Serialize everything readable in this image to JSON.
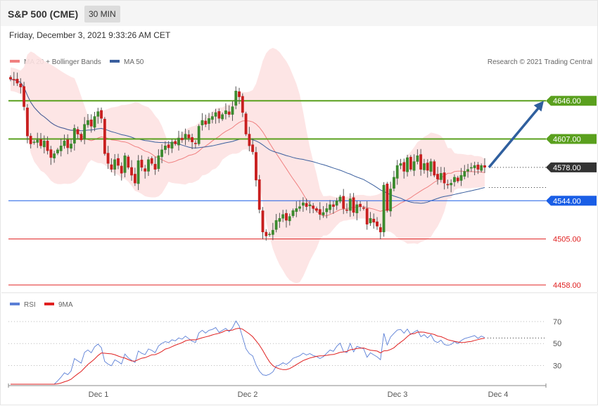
{
  "header": {
    "title": "S&P 500 (CME)",
    "timeframe": "30 MIN",
    "timestamp": "Friday, December 3, 2021 9:33:26 AM CET"
  },
  "legend": {
    "main": [
      {
        "label": "MA 20 + Bollinger Bands",
        "color": "#f08080"
      },
      {
        "label": "MA 50",
        "color": "#3a5f9e"
      }
    ],
    "rsi": [
      {
        "label": "RSI",
        "color": "#5b7fd6"
      },
      {
        "label": "9MA",
        "color": "#e02020"
      }
    ]
  },
  "copyright": "Research © 2021 Trading Central",
  "chart_data": [
    {
      "type": "candlestick",
      "title": "S&P 500 (CME)",
      "x_ticks": [
        "Dec 1",
        "Dec 2",
        "Dec 3",
        "Dec 4"
      ],
      "ylim": [
        4453,
        4672
      ],
      "levels": [
        {
          "value": 4646.0,
          "label": "4646.00",
          "style": "resistance",
          "color": "#5aa01e"
        },
        {
          "value": 4607.0,
          "label": "4607.00",
          "style": "resistance",
          "color": "#5aa01e"
        },
        {
          "value": 4578.0,
          "label": "4578.00",
          "style": "last-price",
          "color": "#333333"
        },
        {
          "value": 4544.0,
          "label": "4544.00",
          "style": "pivot",
          "color": "#1a5ee6"
        },
        {
          "value": 4505.0,
          "label": "4505.00",
          "style": "support",
          "color": "#e02020"
        },
        {
          "value": 4458.0,
          "label": "4458.00",
          "style": "support",
          "color": "#e02020"
        }
      ],
      "forecast_arrow": {
        "from": 4578,
        "to": 4646,
        "color": "#2f5f9e"
      },
      "closes": [
        4668,
        4667,
        4664,
        4660,
        4640,
        4610,
        4602,
        4604,
        4606,
        4600,
        4605,
        4595,
        4588,
        4592,
        4596,
        4600,
        4605,
        4598,
        4602,
        4618,
        4612,
        4606,
        4622,
        4626,
        4620,
        4630,
        4635,
        4628,
        4592,
        4582,
        4576,
        4586,
        4580,
        4572,
        4590,
        4578,
        4570,
        4562,
        4585,
        4578,
        4574,
        4586,
        4582,
        4576,
        4590,
        4596,
        4600,
        4598,
        4604,
        4602,
        4608,
        4606,
        4612,
        4608,
        4604,
        4602,
        4620,
        4626,
        4622,
        4628,
        4630,
        4634,
        4628,
        4632,
        4636,
        4632,
        4640,
        4656,
        4650,
        4634,
        4612,
        4600,
        4594,
        4565,
        4535,
        4512,
        4508,
        4510,
        4514,
        4524,
        4526,
        4530,
        4524,
        4528,
        4534,
        4536,
        4538,
        4542,
        4538,
        4540,
        4536,
        4534,
        4530,
        4532,
        4536,
        4540,
        4538,
        4544,
        4548,
        4536,
        4534,
        4546,
        4532,
        4540,
        4538,
        4536,
        4520,
        4526,
        4522,
        4518,
        4512,
        4560,
        4534,
        4556,
        4568,
        4580,
        4582,
        4574,
        4588,
        4576,
        4584,
        4590,
        4576,
        4582,
        4575,
        4584,
        4570,
        4566,
        4572,
        4562,
        4560,
        4562,
        4568,
        4564,
        4570,
        4574,
        4576,
        4578,
        4580,
        4576,
        4580,
        4578
      ]
    },
    {
      "type": "line",
      "series": [
        {
          "name": "RSI"
        },
        {
          "name": "9MA"
        }
      ],
      "y_ticks": [
        70,
        50,
        30
      ],
      "ylim": [
        13,
        77
      ],
      "last_value": 55
    }
  ]
}
